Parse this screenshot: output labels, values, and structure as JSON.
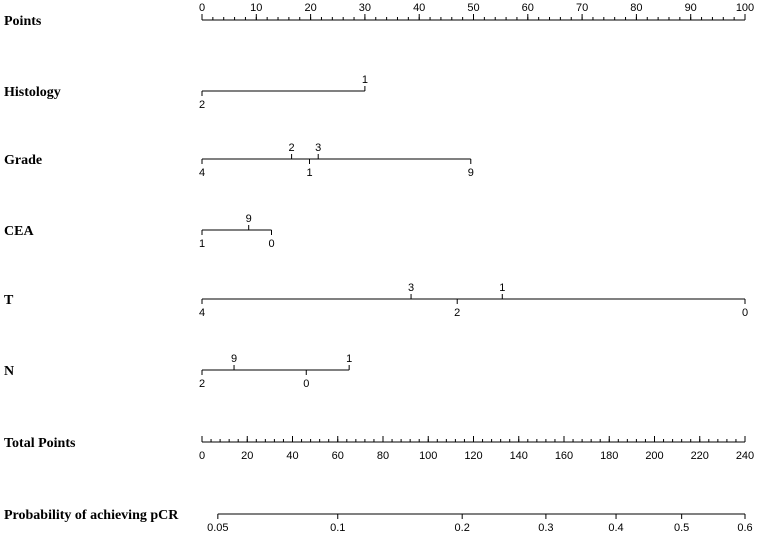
{
  "chart_data": {
    "type": "nomogram",
    "title": "",
    "axes": [
      {
        "name": "Points",
        "kind": "scale",
        "range": [
          0,
          100
        ],
        "labels": [
          "0",
          "10",
          "20",
          "30",
          "40",
          "50",
          "60",
          "70",
          "80",
          "90",
          "100"
        ],
        "minor_step": 2
      },
      {
        "name": "Histology",
        "kind": "variable",
        "points_range": [
          0,
          30
        ],
        "levels": [
          {
            "label": "2",
            "points": 0,
            "side": "below"
          },
          {
            "label": "1",
            "points": 30,
            "side": "above"
          }
        ]
      },
      {
        "name": "Grade",
        "kind": "variable",
        "points_range": [
          0,
          49.5
        ],
        "levels": [
          {
            "label": "4",
            "points": 0,
            "side": "below"
          },
          {
            "label": "2",
            "points": 16.5,
            "side": "above"
          },
          {
            "label": "1",
            "points": 19.8,
            "side": "below"
          },
          {
            "label": "3",
            "points": 21.4,
            "side": "above"
          },
          {
            "label": "9",
            "points": 49.5,
            "side": "below"
          }
        ]
      },
      {
        "name": "CEA",
        "kind": "variable",
        "points_range": [
          0,
          12.8
        ],
        "levels": [
          {
            "label": "1",
            "points": 0,
            "side": "below"
          },
          {
            "label": "9",
            "points": 8.6,
            "side": "above"
          },
          {
            "label": "0",
            "points": 12.8,
            "side": "below"
          }
        ]
      },
      {
        "name": "T",
        "kind": "variable",
        "points_range": [
          0,
          100
        ],
        "levels": [
          {
            "label": "4",
            "points": 0,
            "side": "below"
          },
          {
            "label": "3",
            "points": 38.5,
            "side": "above"
          },
          {
            "label": "2",
            "points": 47,
            "side": "below"
          },
          {
            "label": "1",
            "points": 55.3,
            "side": "above"
          },
          {
            "label": "0",
            "points": 100,
            "side": "below"
          }
        ]
      },
      {
        "name": "N",
        "kind": "variable",
        "points_range": [
          0,
          27.1
        ],
        "levels": [
          {
            "label": "2",
            "points": 0,
            "side": "below"
          },
          {
            "label": "9",
            "points": 5.9,
            "side": "above"
          },
          {
            "label": "0",
            "points": 19.2,
            "side": "below"
          },
          {
            "label": "1",
            "points": 27.1,
            "side": "above"
          }
        ]
      },
      {
        "name": "Total Points",
        "kind": "scale",
        "range": [
          0,
          240
        ],
        "labels": [
          "0",
          "20",
          "40",
          "60",
          "80",
          "100",
          "120",
          "140",
          "160",
          "180",
          "200",
          "220",
          "240"
        ],
        "minor_step": 4
      },
      {
        "name": "Probability of achieving pCR",
        "kind": "probability",
        "total_points_range": [
          7,
          240
        ],
        "ticks": [
          {
            "label": "0.05",
            "total_points": 7
          },
          {
            "label": "0.1",
            "total_points": 60
          },
          {
            "label": "0.2",
            "total_points": 115
          },
          {
            "label": "0.3",
            "total_points": 152
          },
          {
            "label": "0.4",
            "total_points": 183
          },
          {
            "label": "0.5",
            "total_points": 212
          },
          {
            "label": "0.6",
            "total_points": 240
          }
        ]
      }
    ]
  }
}
